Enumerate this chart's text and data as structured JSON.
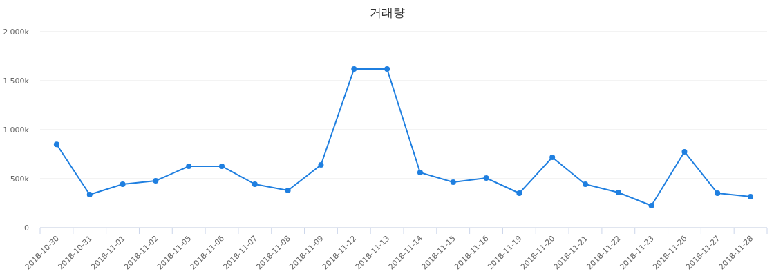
{
  "chart_data": {
    "type": "line",
    "title": "거래량",
    "categories": [
      "2018-10-30",
      "2018-10-31",
      "2018-11-01",
      "2018-11-02",
      "2018-11-05",
      "2018-11-06",
      "2018-11-07",
      "2018-11-08",
      "2018-11-09",
      "2018-11-12",
      "2018-11-13",
      "2018-11-14",
      "2018-11-15",
      "2018-11-16",
      "2018-11-19",
      "2018-11-20",
      "2018-11-21",
      "2018-11-22",
      "2018-11-23",
      "2018-11-26",
      "2018-11-27",
      "2018-11-28"
    ],
    "series": [
      {
        "color": "#1f7fe0",
        "values": [
          850000,
          338000,
          444000,
          479000,
          627000,
          627000,
          444000,
          380000,
          641000,
          1620000,
          1620000,
          563000,
          465000,
          507000,
          352000,
          718000,
          444000,
          359000,
          225000,
          775000,
          352000,
          317000
        ]
      }
    ],
    "ylim": [
      0,
      2000000
    ],
    "yticks": [
      0,
      {
        "value": 500000,
        "label": "500k"
      },
      {
        "value": 1000000,
        "label": "1 000k"
      },
      {
        "value": 1500000,
        "label": "1 500k"
      },
      {
        "value": 2000000,
        "label": "2 000k"
      }
    ],
    "grid": "y",
    "marker": "circle",
    "line_style": "solid"
  }
}
